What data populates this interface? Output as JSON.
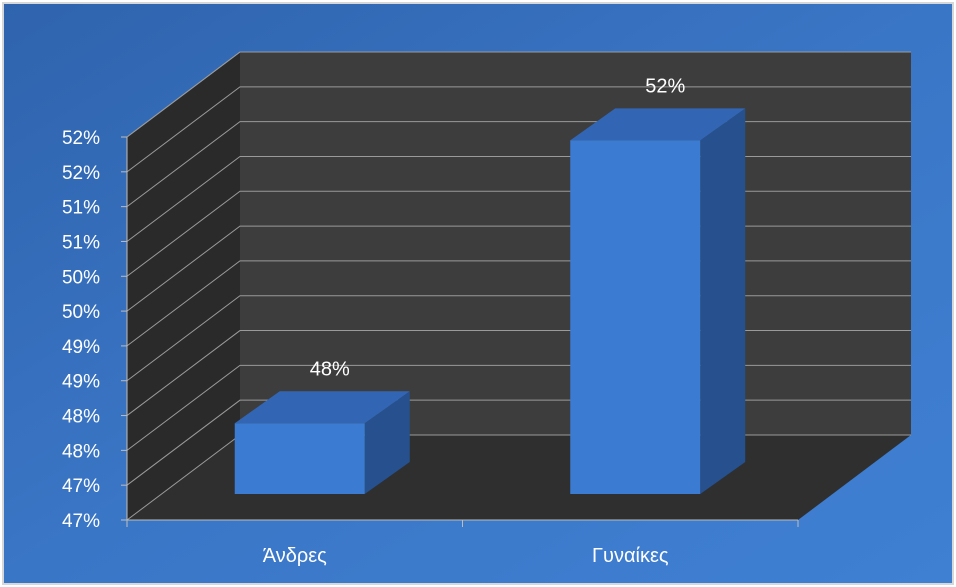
{
  "colors": {
    "background": "#3a75c4",
    "plot_back_wall": "#3d3d3d",
    "plot_side_wall": "#2a2a2a",
    "plot_floor": "#2f2f2f",
    "gridline": "#9a9a9a",
    "bar_front": "#3b7bd1",
    "bar_top": "#3266b5",
    "bar_side": "#26508e",
    "text": "#ffffff"
  },
  "chart_data": {
    "type": "bar",
    "categories": [
      "Άνδρες",
      "Γυναίκες"
    ],
    "values": [
      48,
      52
    ],
    "data_labels": [
      "48%",
      "52%"
    ],
    "y_tick_labels": [
      "47%",
      "47%",
      "48%",
      "48%",
      "49%",
      "49%",
      "50%",
      "50%",
      "51%",
      "51%",
      "52%",
      "52%"
    ],
    "ylim": [
      47,
      52.5
    ],
    "y_unit": "%",
    "grid": true,
    "legend": "none",
    "style": "3d-column"
  }
}
